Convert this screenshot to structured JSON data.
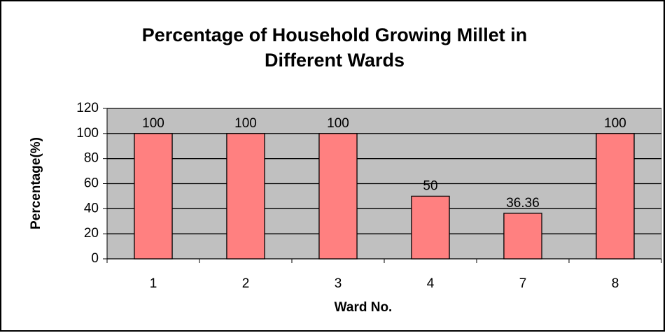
{
  "chart_data": {
    "type": "bar",
    "title": "Percentage of Household Growing Millet in Different Wards",
    "x_label": "Ward No.",
    "y_label": "Percentage(%)",
    "categories": [
      "1",
      "2",
      "3",
      "4",
      "7",
      "8"
    ],
    "values": [
      100,
      100,
      100,
      50,
      36.36,
      100
    ],
    "color": "#ff8080",
    "ylim": [
      0,
      120
    ],
    "yticks": [
      0,
      20,
      40,
      60,
      80,
      100,
      120
    ],
    "grid": true
  }
}
